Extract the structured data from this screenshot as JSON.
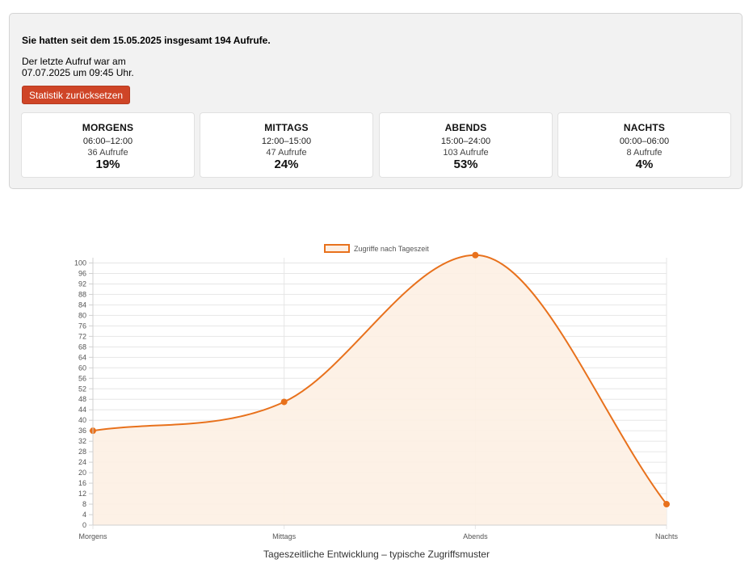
{
  "summary": {
    "text": "Sie hatten seit dem 15.05.2025 insgesamt 194 Aufrufe.",
    "last_call_line1": "Der letzte Aufruf war am",
    "last_call_line2": "07.07.2025 um 09:45 Uhr."
  },
  "reset_button": {
    "label": "Statistik zurücksetzen",
    "color": "#cf4527"
  },
  "cards": [
    {
      "title": "MORGENS",
      "range": "06:00–12:00",
      "count": "36 Aufrufe",
      "percent": "19%"
    },
    {
      "title": "MITTAGS",
      "range": "12:00–15:00",
      "count": "47 Aufrufe",
      "percent": "24%"
    },
    {
      "title": "ABENDS",
      "range": "15:00–24:00",
      "count": "103 Aufrufe",
      "percent": "53%"
    },
    {
      "title": "NACHTS",
      "range": "00:00–06:00",
      "count": "8 Aufrufe",
      "percent": "4%"
    }
  ],
  "chart_data": {
    "type": "area",
    "categories": [
      "Morgens",
      "Mittags",
      "Abends",
      "Nachts"
    ],
    "series": [
      {
        "name": "Zugriffe nach Tageszeit",
        "values": [
          36,
          47,
          103,
          8
        ],
        "color": "#e8711c",
        "fill": "#fdefe3"
      }
    ],
    "ylim": [
      0,
      102
    ],
    "yticks": [
      0,
      4,
      8,
      12,
      16,
      20,
      24,
      28,
      32,
      36,
      40,
      44,
      48,
      52,
      56,
      60,
      64,
      68,
      72,
      76,
      80,
      84,
      88,
      92,
      96,
      100
    ],
    "grid": true,
    "legend": "top-center",
    "xlabel": "Tageszeitliche Entwicklung – typische Zugriffsmuster",
    "ylabel": ""
  }
}
